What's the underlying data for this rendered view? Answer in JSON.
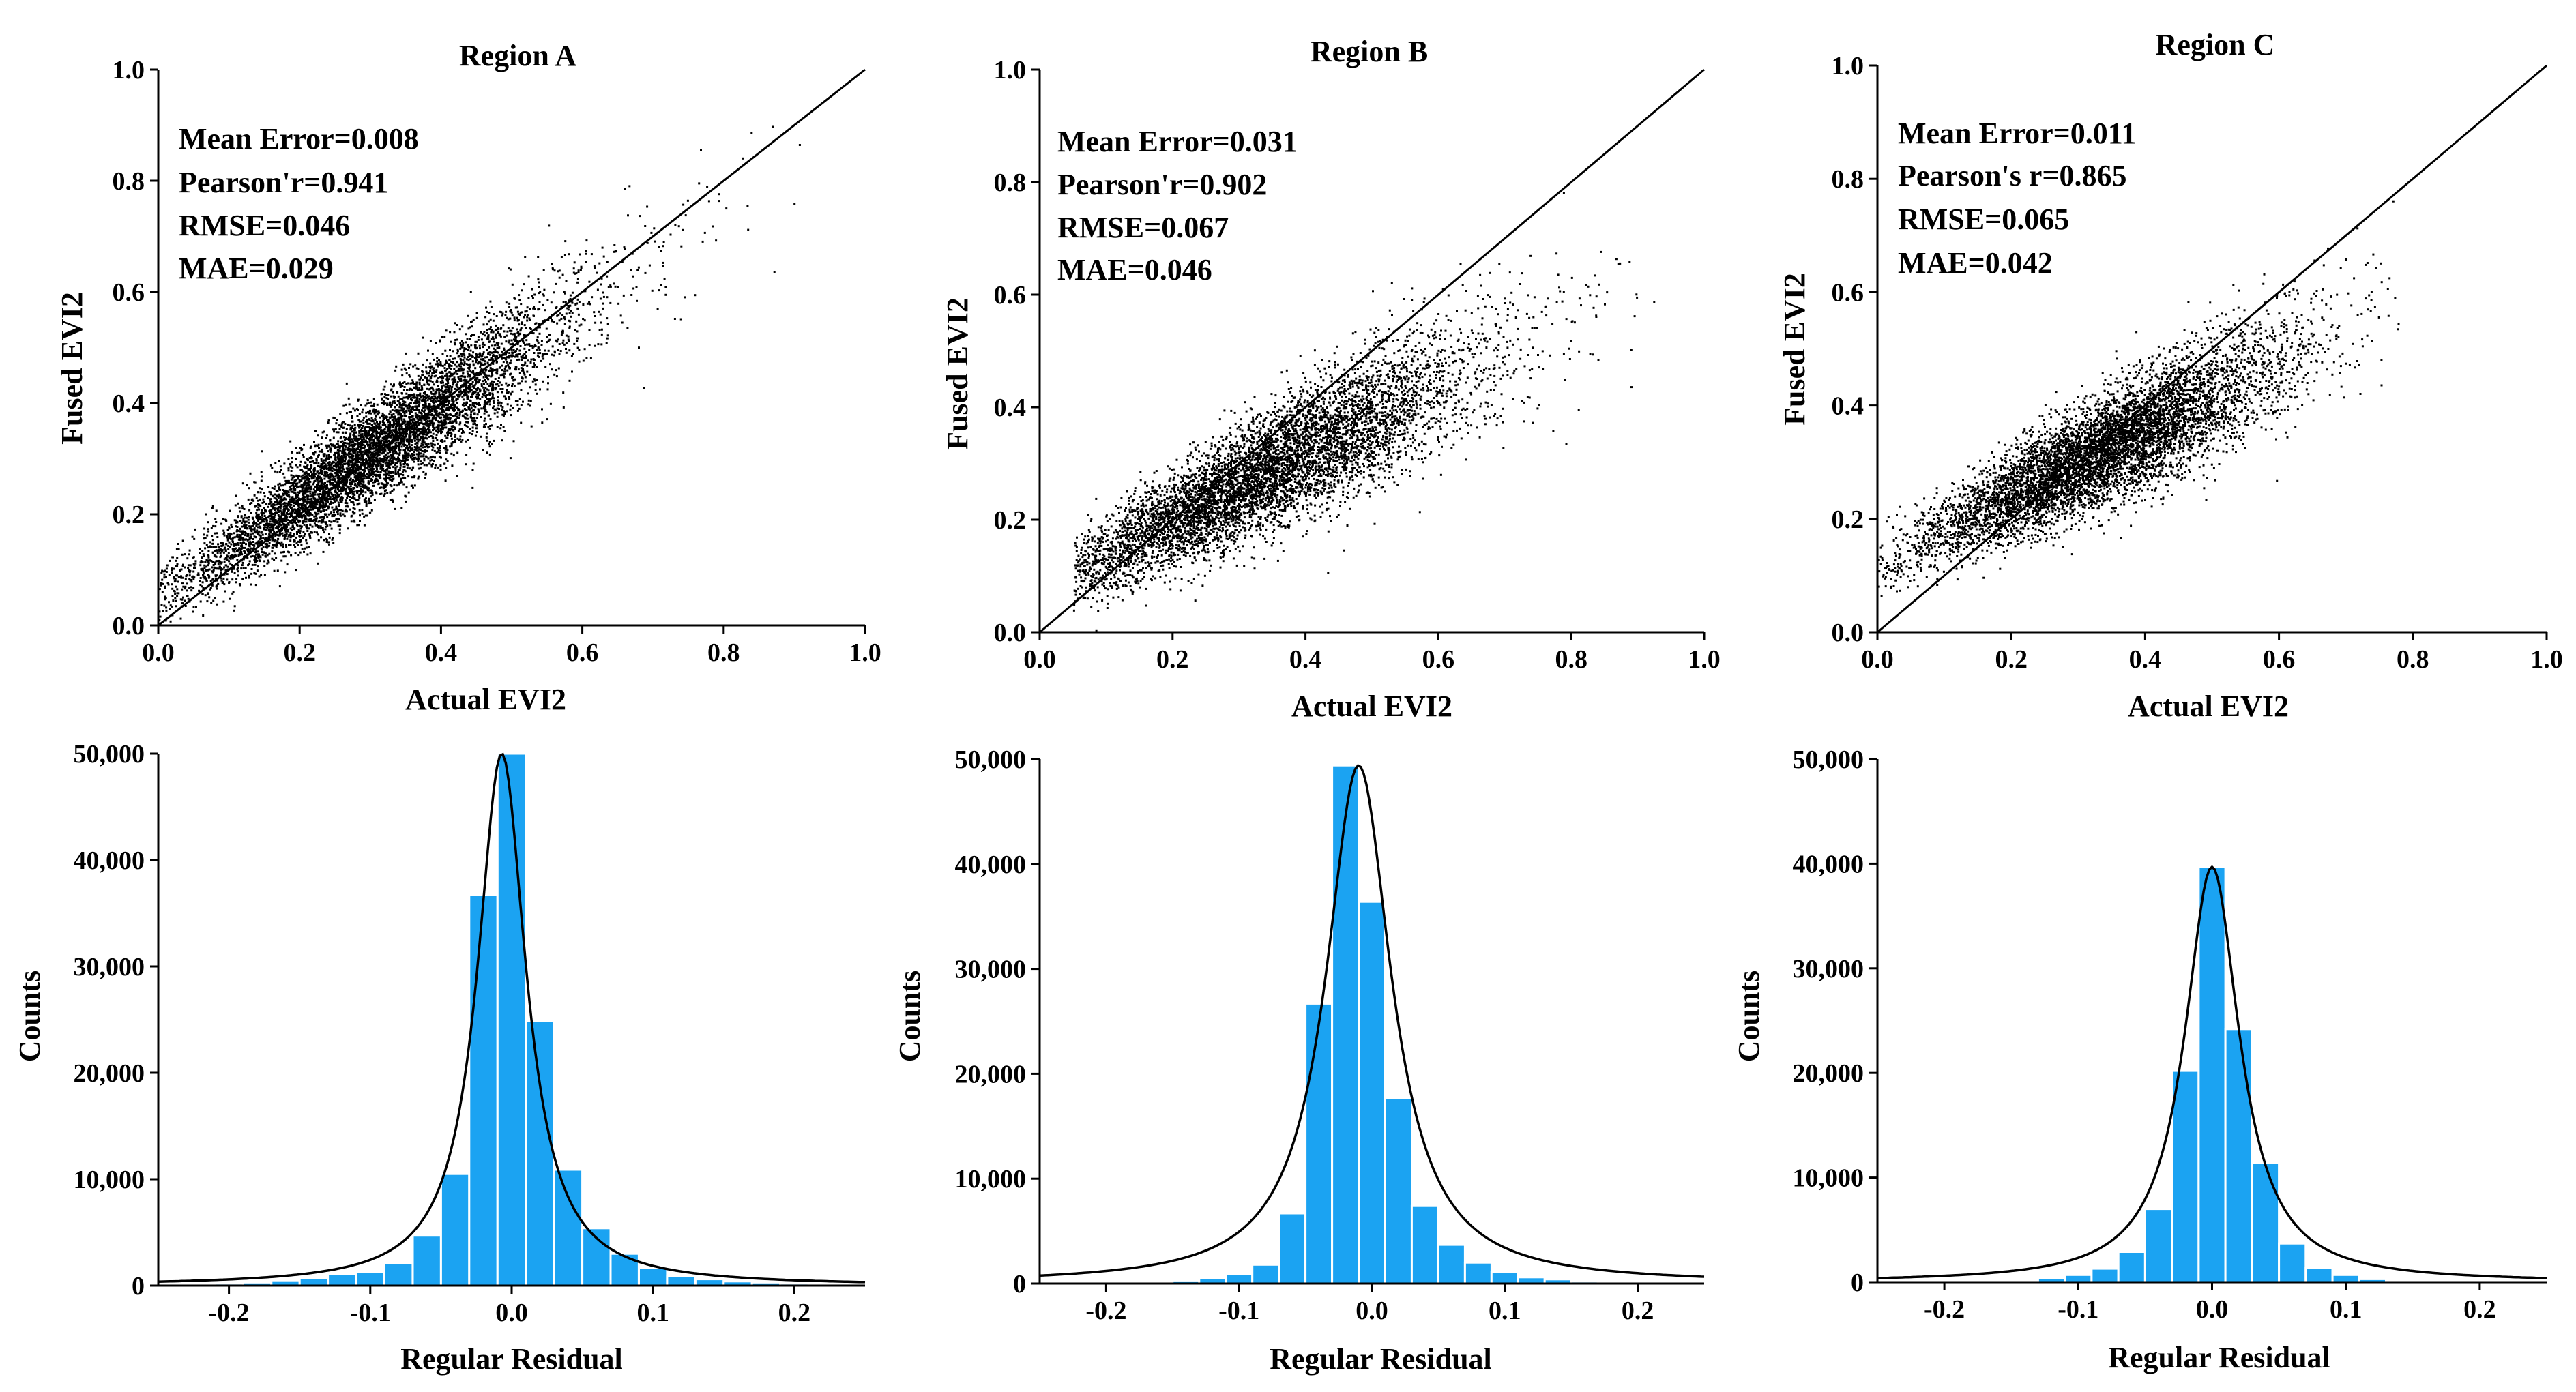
{
  "chart_data": [
    {
      "type": "scatter",
      "title": "Region A",
      "xlabel": "Actual EVI2",
      "ylabel": "Fused EVI2",
      "xlim": [
        0,
        1.0
      ],
      "ylim": [
        0,
        1.0
      ],
      "xticks": [
        "0.0",
        "0.2",
        "0.4",
        "0.6",
        "0.8",
        "1.0"
      ],
      "yticks": [
        "0.0",
        "0.2",
        "0.4",
        "0.6",
        "0.8",
        "1.0"
      ],
      "annotations": [
        "Mean Error=0.008",
        "Pearson'r=0.941",
        "RMSE=0.046",
        "MAE=0.029"
      ],
      "reference_line": {
        "from": [
          0,
          0
        ],
        "to": [
          1.0,
          1.0
        ]
      },
      "point_color": "#000000",
      "cloud": {
        "x_center": 0.3,
        "x_spread": 0.13,
        "x_range": [
          0.0,
          0.92
        ],
        "slope": 0.87,
        "intercept": 0.05,
        "y_spread": 0.05
      }
    },
    {
      "type": "scatter",
      "title": "Region B",
      "xlabel": "Actual EVI2",
      "ylabel": "Fused EVI2",
      "xlim": [
        0,
        1.0
      ],
      "ylim": [
        0,
        1.0
      ],
      "xticks": [
        "0.0",
        "0.2",
        "0.4",
        "0.6",
        "0.8",
        "1.0"
      ],
      "yticks": [
        "0.0",
        "0.2",
        "0.4",
        "0.6",
        "0.8",
        "1.0"
      ],
      "annotations": [
        "Mean Error=0.031",
        "Pearson'r=0.902",
        "RMSE=0.067",
        "MAE=0.046"
      ],
      "reference_line": {
        "from": [
          0,
          0
        ],
        "to": [
          1.0,
          1.0
        ]
      },
      "point_color": "#000000",
      "cloud": {
        "x_center": 0.33,
        "x_spread": 0.15,
        "x_range": [
          0.05,
          0.95
        ],
        "slope": 0.6,
        "intercept": 0.08,
        "y_spread": 0.055
      }
    },
    {
      "type": "scatter",
      "title": "Region C",
      "xlabel": "Actual EVI2",
      "ylabel": "Fused EVI2",
      "xlim": [
        0,
        1.0
      ],
      "ylim": [
        0,
        1.0
      ],
      "xticks": [
        "0.0",
        "0.2",
        "0.4",
        "0.6",
        "0.8",
        "1.0"
      ],
      "yticks": [
        "0.0",
        "0.2",
        "0.4",
        "0.6",
        "0.8",
        "1.0"
      ],
      "annotations": [
        "Mean Error=0.011",
        "Pearson's r=0.865",
        "RMSE=0.065",
        "MAE=0.042"
      ],
      "reference_line": {
        "from": [
          0,
          0
        ],
        "to": [
          1.0,
          1.0
        ]
      },
      "point_color": "#000000",
      "cloud": {
        "x_center": 0.33,
        "x_spread": 0.13,
        "x_range": [
          0.0,
          0.78
        ],
        "slope": 0.6,
        "intercept": 0.12,
        "y_spread": 0.05
      }
    },
    {
      "type": "bar",
      "subtype": "histogram",
      "xlabel": "Regular Residual",
      "ylabel": "Counts",
      "xlim": [
        -0.25,
        0.25
      ],
      "ylim": [
        0,
        50000
      ],
      "xticks": [
        "-0.2",
        "-0.1",
        "0.0",
        "0.1",
        "0.2"
      ],
      "yticks": [
        "0",
        "10,000",
        "20,000",
        "30,000",
        "40,000",
        "50,000"
      ],
      "bin_width": 0.02,
      "bin_starts": [
        -0.21,
        -0.19,
        -0.17,
        -0.15,
        -0.13,
        -0.11,
        -0.09,
        -0.07,
        -0.05,
        -0.03,
        -0.01,
        0.01,
        0.03,
        0.05,
        0.07,
        0.09,
        0.11,
        0.13,
        0.15,
        0.17,
        0.19
      ],
      "values": [
        200,
        300,
        500,
        700,
        1100,
        1300,
        2100,
        4700,
        10500,
        36700,
        50000,
        24900,
        10900,
        5400,
        3000,
        1700,
        900,
        600,
        400,
        300,
        200
      ],
      "bar_color": "#1ba3f2",
      "fit_curve": {
        "type": "lorentzian",
        "center": -0.007,
        "amplitude": 50000,
        "half_width": 0.021
      }
    },
    {
      "type": "bar",
      "subtype": "histogram",
      "xlabel": "Regular Residual",
      "ylabel": "Counts",
      "xlim": [
        -0.25,
        0.25
      ],
      "ylim": [
        0,
        50000
      ],
      "xticks": [
        "-0.2",
        "-0.1",
        "0.0",
        "0.1",
        "0.2"
      ],
      "yticks": [
        "0",
        "10,000",
        "20,000",
        "30,000",
        "40,000",
        "50,000"
      ],
      "bin_width": 0.02,
      "bin_starts": [
        -0.15,
        -0.13,
        -0.11,
        -0.09,
        -0.07,
        -0.05,
        -0.03,
        -0.01,
        0.01,
        0.03,
        0.05,
        0.07,
        0.09,
        0.11,
        0.13,
        0.15,
        0.17
      ],
      "values": [
        300,
        500,
        900,
        1800,
        6700,
        26700,
        49400,
        36400,
        17700,
        7400,
        3700,
        2000,
        1100,
        600,
        400,
        200,
        100
      ],
      "bar_color": "#1ba3f2",
      "fit_curve": {
        "type": "lorentzian",
        "center": -0.01,
        "amplitude": 49400,
        "half_width": 0.03
      }
    },
    {
      "type": "bar",
      "subtype": "histogram",
      "xlabel": "Regular Residual",
      "ylabel": "Counts",
      "xlim": [
        -0.25,
        0.25
      ],
      "ylim": [
        0,
        50000
      ],
      "xticks": [
        "-0.2",
        "-0.1",
        "0.0",
        "0.1",
        "0.2"
      ],
      "yticks": [
        "0",
        "10,000",
        "20,000",
        "30,000",
        "40,000",
        "50,000"
      ],
      "bin_width": 0.02,
      "bin_starts": [
        -0.13,
        -0.11,
        -0.09,
        -0.07,
        -0.05,
        -0.03,
        -0.01,
        0.01,
        0.03,
        0.05,
        0.07,
        0.09,
        0.11
      ],
      "values": [
        400,
        700,
        1300,
        2900,
        7000,
        20200,
        39700,
        24200,
        11400,
        3700,
        1400,
        700,
        300
      ],
      "bar_color": "#1ba3f2",
      "fit_curve": {
        "type": "lorentzian",
        "center": 0.0,
        "amplitude": 39700,
        "half_width": 0.025
      }
    }
  ]
}
